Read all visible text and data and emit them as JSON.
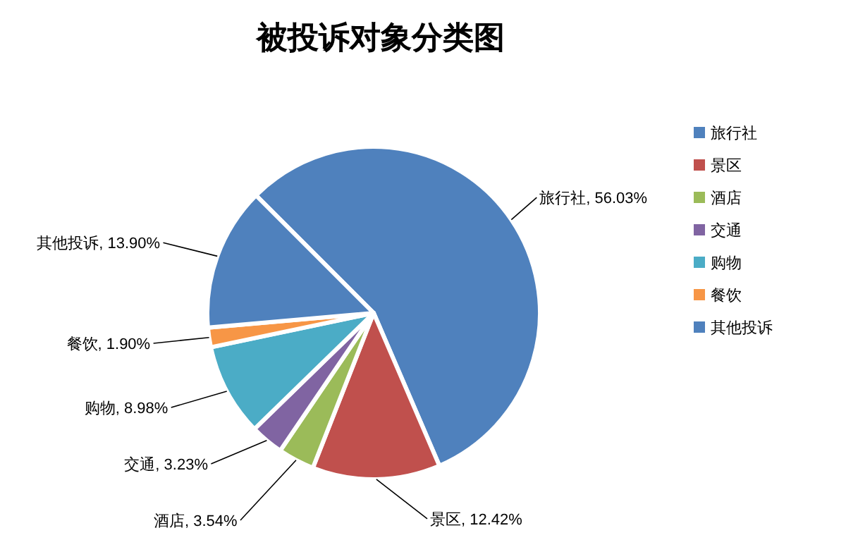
{
  "chart_data": {
    "type": "pie",
    "title": "被投诉对象分类图",
    "categories": [
      "旅行社",
      "景区",
      "酒店",
      "交通",
      "购物",
      "餐饮",
      "其他投诉"
    ],
    "values": [
      56.03,
      12.42,
      3.54,
      3.23,
      8.98,
      1.9,
      13.9
    ],
    "colors": [
      "#4f81bd",
      "#c0504d",
      "#9bbb59",
      "#8064a2",
      "#4bacc6",
      "#f79646",
      "#4f81bd"
    ],
    "value_labels": [
      ", 56.03%",
      ", 12.42%",
      ", 3.54%",
      ", 3.23%",
      ", 8.98%",
      ", 1.90%",
      ", 13.90%"
    ],
    "legend": "right"
  }
}
